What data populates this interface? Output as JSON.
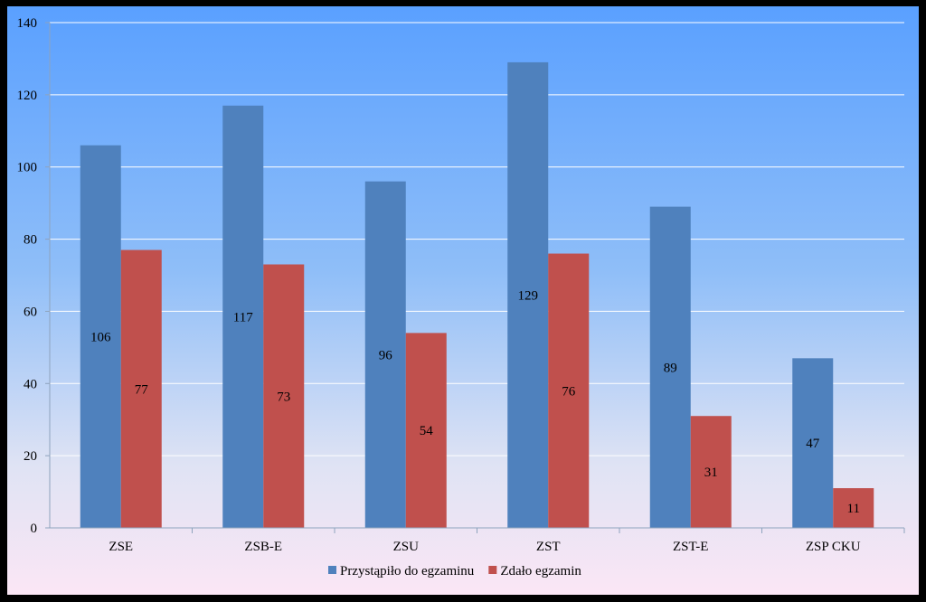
{
  "chart_data": {
    "type": "bar",
    "categories": [
      "ZSE",
      "ZSB-E",
      "ZSU",
      "ZST",
      "ZST-E",
      "ZSP CKU"
    ],
    "series": [
      {
        "name": "Przystąpiło do egzaminu",
        "values": [
          106,
          117,
          96,
          129,
          89,
          47
        ],
        "color": "#4f81bd"
      },
      {
        "name": "Zdało egzamin",
        "values": [
          77,
          73,
          54,
          76,
          31,
          11
        ],
        "color": "#c0504d"
      }
    ],
    "title": "",
    "xlabel": "",
    "ylabel": "",
    "ylim": [
      0,
      140
    ],
    "yticks": [
      0,
      20,
      40,
      60,
      80,
      100,
      120,
      140
    ],
    "grid": true,
    "legend_position": "bottom",
    "data_labels": true
  }
}
